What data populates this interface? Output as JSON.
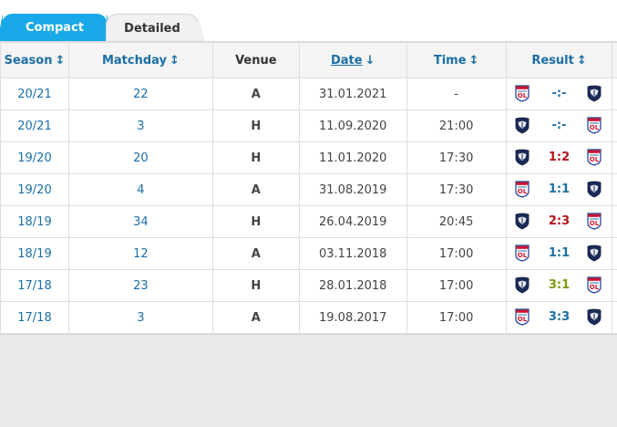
{
  "tabs": [
    {
      "label": "Compact",
      "active": true
    },
    {
      "label": "Detailed",
      "active": false
    }
  ],
  "columns": {
    "season": "Season",
    "matchday": "Matchday",
    "venue": "Venue",
    "date": "Date",
    "time": "Time",
    "result": "Result"
  },
  "icons": {
    "sort_both": "sort-arrows-icon",
    "sort_down": "sort-down-arrow-icon",
    "crest_lyon": "olympique-lyon-crest-icon",
    "crest_bordeaux": "bordeaux-crest-icon"
  },
  "colors": {
    "accent": "#1aa9e8",
    "link": "#1b6fa6",
    "loss": "#b0141a",
    "win": "#7a9a0a",
    "lyon_red": "#d2122e",
    "lyon_blue": "#1a3d8f",
    "bordeaux_navy": "#1c2b59"
  },
  "matches": [
    {
      "season": "20/21",
      "matchday": "22",
      "venue": "A",
      "date": "31.01.2021",
      "time": "-",
      "home": "lyon",
      "away": "bordeaux",
      "score": "-:-",
      "outcome": "none"
    },
    {
      "season": "20/21",
      "matchday": "3",
      "venue": "H",
      "date": "11.09.2020",
      "time": "21:00",
      "home": "bordeaux",
      "away": "lyon",
      "score": "-:-",
      "outcome": "none"
    },
    {
      "season": "19/20",
      "matchday": "20",
      "venue": "H",
      "date": "11.01.2020",
      "time": "17:30",
      "home": "bordeaux",
      "away": "lyon",
      "score": "1:2",
      "outcome": "loss"
    },
    {
      "season": "19/20",
      "matchday": "4",
      "venue": "A",
      "date": "31.08.2019",
      "time": "17:30",
      "home": "lyon",
      "away": "bordeaux",
      "score": "1:1",
      "outcome": "draw"
    },
    {
      "season": "18/19",
      "matchday": "34",
      "venue": "H",
      "date": "26.04.2019",
      "time": "20:45",
      "home": "bordeaux",
      "away": "lyon",
      "score": "2:3",
      "outcome": "loss"
    },
    {
      "season": "18/19",
      "matchday": "12",
      "venue": "A",
      "date": "03.11.2018",
      "time": "17:00",
      "home": "lyon",
      "away": "bordeaux",
      "score": "1:1",
      "outcome": "draw"
    },
    {
      "season": "17/18",
      "matchday": "23",
      "venue": "H",
      "date": "28.01.2018",
      "time": "17:00",
      "home": "bordeaux",
      "away": "lyon",
      "score": "3:1",
      "outcome": "win"
    },
    {
      "season": "17/18",
      "matchday": "3",
      "venue": "A",
      "date": "19.08.2017",
      "time": "17:00",
      "home": "lyon",
      "away": "bordeaux",
      "score": "3:3",
      "outcome": "draw"
    }
  ]
}
